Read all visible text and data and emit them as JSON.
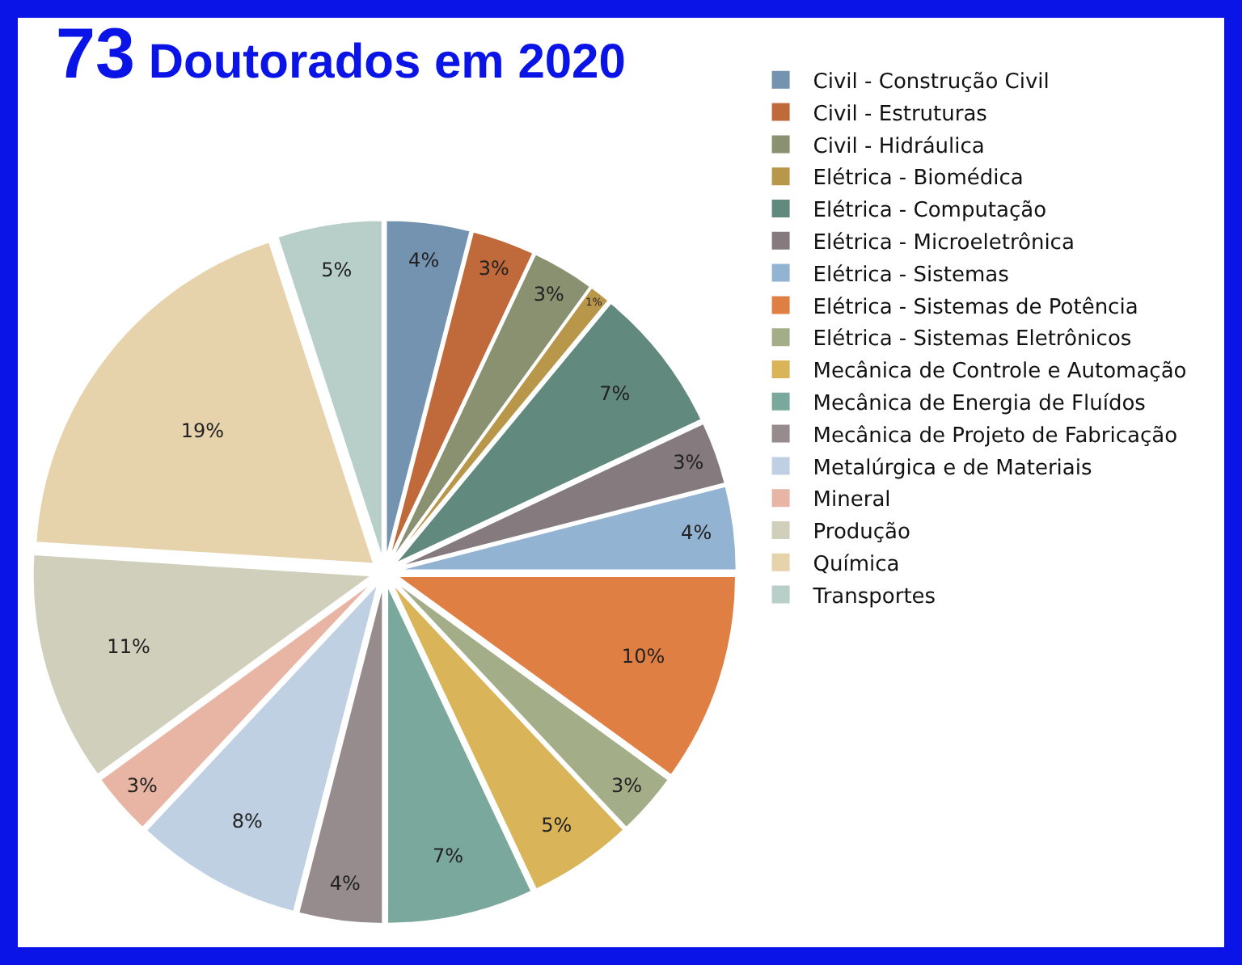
{
  "chart_data": {
    "type": "pie",
    "title": "73 Doutorados em 2020",
    "categories": [
      "Civil - Construção Civil",
      "Civil - Estruturas",
      "Civil - Hidráulica",
      "Elétrica - Biomédica",
      "Elétrica - Computação",
      "Elétrica - Microeletrônica",
      "Elétrica - Sistemas",
      "Elétrica - Sistemas de Potência",
      "Elétrica - Sistemas Eletrônicos",
      "Mecânica de Controle e Automação",
      "Mecânica de Energia de Fluídos",
      "Mecânica de Projeto de Fabricação",
      "Metalúrgica e de Materiais",
      "Mineral",
      "Produção",
      "Química",
      "Transportes"
    ],
    "values": [
      4,
      3,
      3,
      1,
      7,
      3,
      4,
      10,
      3,
      5,
      7,
      4,
      8,
      3,
      11,
      19,
      5
    ],
    "value_labels": [
      "4%",
      "3%",
      "3%",
      "1%",
      "7%",
      "3%",
      "4%",
      "10%",
      "3%",
      "5%",
      "7%",
      "4%",
      "8%",
      "3%",
      "11%",
      "19%",
      "5%"
    ],
    "colors": [
      "#7393b0",
      "#c0693a",
      "#8a9170",
      "#b8964a",
      "#62897e",
      "#857a7e",
      "#93b3d3",
      "#e07f44",
      "#a3ae88",
      "#d9b458",
      "#7aa89c",
      "#968b8d",
      "#bfd0e2",
      "#e8b5a5",
      "#cfcfbc",
      "#e6d2ab",
      "#b8cec8"
    ],
    "legend": "right"
  }
}
